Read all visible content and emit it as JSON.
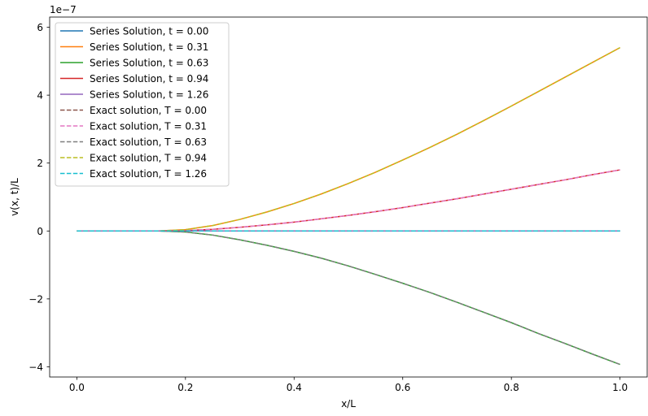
{
  "chart_data": {
    "type": "line",
    "xlabel": "x/L",
    "ylabel": "v(x, t)/L",
    "scale_label": "1e−7",
    "xlim": [
      -0.05,
      1.05
    ],
    "ylim": [
      -4.3,
      6.3
    ],
    "x_ticks": [
      {
        "value": 0.0,
        "label": "0.0"
      },
      {
        "value": 0.2,
        "label": "0.2"
      },
      {
        "value": 0.4,
        "label": "0.4"
      },
      {
        "value": 0.6,
        "label": "0.6"
      },
      {
        "value": 0.8,
        "label": "0.8"
      },
      {
        "value": 1.0,
        "label": "1.0"
      }
    ],
    "y_ticks": [
      {
        "value": -4,
        "label": "−4"
      },
      {
        "value": -2,
        "label": "−2"
      },
      {
        "value": 0,
        "label": "0"
      },
      {
        "value": 2,
        "label": "2"
      },
      {
        "value": 4,
        "label": "4"
      },
      {
        "value": 6,
        "label": "6"
      }
    ],
    "grid": false,
    "legend_position": "top-left",
    "x": [
      0.0,
      0.05,
      0.1,
      0.15,
      0.2,
      0.25,
      0.3,
      0.35,
      0.4,
      0.45,
      0.5,
      0.55,
      0.6,
      0.65,
      0.7,
      0.75,
      0.8,
      0.85,
      0.9,
      0.95,
      1.0
    ],
    "series": [
      {
        "name": "Series Solution, t = 0.00",
        "color": "#1f77b4",
        "dash": "solid",
        "values": [
          0,
          0,
          0,
          0,
          0,
          0,
          0,
          0,
          0,
          0,
          0,
          0,
          0,
          0,
          0,
          0,
          0,
          0,
          0,
          0,
          0
        ]
      },
      {
        "name": "Series Solution, t = 0.31",
        "color": "#ff7f0e",
        "dash": "solid",
        "values": [
          0,
          0,
          0,
          0,
          0.04,
          0.16,
          0.34,
          0.56,
          0.81,
          1.09,
          1.4,
          1.73,
          2.09,
          2.46,
          2.85,
          3.26,
          3.68,
          4.11,
          4.54,
          4.97,
          5.4
        ]
      },
      {
        "name": "Series Solution, t = 0.63",
        "color": "#2ca02c",
        "dash": "solid",
        "values": [
          0,
          0,
          0,
          0,
          -0.03,
          -0.12,
          -0.26,
          -0.42,
          -0.6,
          -0.8,
          -1.03,
          -1.28,
          -1.54,
          -1.81,
          -2.1,
          -2.4,
          -2.7,
          -3.02,
          -3.32,
          -3.63,
          -3.93
        ]
      },
      {
        "name": "Series Solution, t = 0.94",
        "color": "#d62728",
        "dash": "solid",
        "values": [
          0,
          0,
          0,
          0,
          0.01,
          0.05,
          0.11,
          0.18,
          0.26,
          0.36,
          0.46,
          0.57,
          0.69,
          0.82,
          0.95,
          1.09,
          1.23,
          1.37,
          1.51,
          1.66,
          1.8
        ]
      },
      {
        "name": "Series Solution, t = 1.26",
        "color": "#9467bd",
        "dash": "solid",
        "values": [
          0,
          0,
          0,
          0,
          0,
          0,
          0,
          0,
          0,
          0,
          0,
          0,
          0,
          0,
          0,
          0,
          0,
          0,
          0,
          0,
          0
        ]
      },
      {
        "name": "Exact solution, T = 0.00",
        "color": "#8c564b",
        "dash": "dashed",
        "values": [
          0,
          0,
          0,
          0,
          0,
          0,
          0,
          0,
          0,
          0,
          0,
          0,
          0,
          0,
          0,
          0,
          0,
          0,
          0,
          0,
          0
        ]
      },
      {
        "name": "Exact solution, T = 0.31",
        "color": "#e377c2",
        "dash": "dashed",
        "values": [
          0,
          0,
          0,
          0,
          0.01,
          0.05,
          0.11,
          0.18,
          0.26,
          0.36,
          0.46,
          0.57,
          0.69,
          0.82,
          0.95,
          1.09,
          1.23,
          1.37,
          1.51,
          1.66,
          1.8
        ]
      },
      {
        "name": "Exact solution, T = 0.63",
        "color": "#7f7f7f",
        "dash": "dashed",
        "values": [
          0,
          0,
          0,
          0,
          -0.03,
          -0.12,
          -0.26,
          -0.42,
          -0.6,
          -0.8,
          -1.03,
          -1.28,
          -1.54,
          -1.81,
          -2.1,
          -2.4,
          -2.7,
          -3.02,
          -3.32,
          -3.63,
          -3.93
        ]
      },
      {
        "name": "Exact solution, T = 0.94",
        "color": "#bcbd22",
        "dash": "dashed",
        "values": [
          0,
          0,
          0,
          0,
          0.04,
          0.16,
          0.34,
          0.56,
          0.81,
          1.09,
          1.4,
          1.73,
          2.09,
          2.46,
          2.85,
          3.26,
          3.68,
          4.11,
          4.54,
          4.97,
          5.4
        ]
      },
      {
        "name": "Exact solution, T = 1.26",
        "color": "#17becf",
        "dash": "dashed",
        "values": [
          0,
          0,
          0,
          0,
          0,
          0,
          0,
          0,
          0,
          0,
          0,
          0,
          0,
          0,
          0,
          0,
          0,
          0,
          0,
          0,
          0
        ]
      }
    ]
  }
}
